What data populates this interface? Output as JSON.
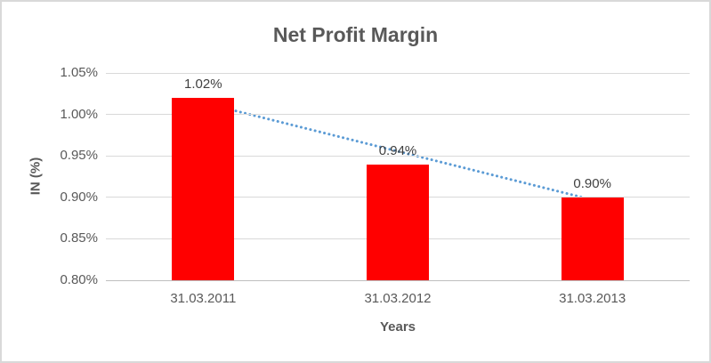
{
  "chart_data": {
    "type": "bar",
    "title": "Net Profit Margin",
    "xlabel": "Years",
    "ylabel": "IN (%)",
    "categories": [
      "31.03.2011",
      "31.03.2012",
      "31.03.2013"
    ],
    "values": [
      1.02,
      0.94,
      0.9
    ],
    "data_labels": [
      "1.02%",
      "0.94%",
      "0.90%"
    ],
    "unit": "percent",
    "ylim": [
      0.8,
      1.05
    ],
    "ytick_step": 0.05,
    "ytick_labels": [
      "0.80%",
      "0.85%",
      "0.90%",
      "0.95%",
      "1.00%",
      "1.05%"
    ],
    "grid": true,
    "legend": false,
    "bar_color": "#ff0000",
    "trendline": {
      "style": "dotted",
      "color": "#5b9bd5",
      "start_value": 1.014,
      "end_value": 0.897
    },
    "colors": {
      "title_text": "#595959",
      "tick_text": "#595959",
      "data_label_text": "#404040",
      "gridline": "#d9d9d9",
      "axis_line": "#bfbfbf",
      "border": "#d9d9d9"
    }
  }
}
